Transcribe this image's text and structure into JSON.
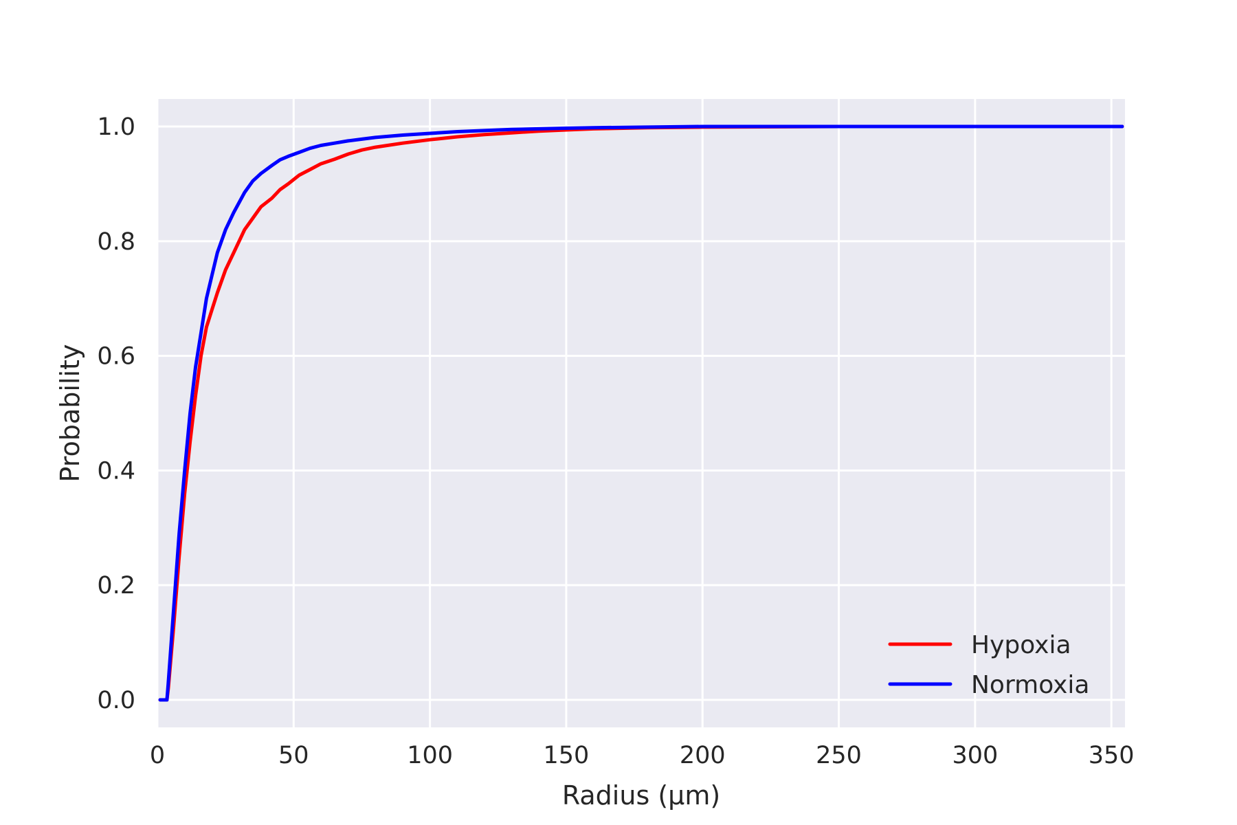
{
  "chart_data": {
    "type": "line",
    "title": "",
    "xlabel": "Radius (µm)",
    "ylabel": "Probability",
    "xlim": [
      0,
      355
    ],
    "ylim": [
      -0.048,
      1.048
    ],
    "xticks": [
      0,
      50,
      100,
      150,
      200,
      250,
      300,
      350
    ],
    "yticks": [
      0.0,
      0.2,
      0.4,
      0.6,
      0.8,
      1.0
    ],
    "xtick_labels": [
      "0",
      "50",
      "100",
      "150",
      "200",
      "250",
      "300",
      "350"
    ],
    "ytick_labels": [
      "0.0",
      "0.2",
      "0.4",
      "0.6",
      "0.8",
      "1.0"
    ],
    "grid": true,
    "legend_position": "lower-right",
    "background_color": "#eaeaf2",
    "series": [
      {
        "name": "Hypoxia",
        "color": "#ff0000",
        "x": [
          1,
          3.5,
          4,
          6,
          8,
          10,
          12,
          14,
          16,
          18,
          20,
          22,
          25,
          28,
          32,
          35,
          38,
          42,
          45,
          48,
          52,
          56,
          60,
          65,
          70,
          75,
          80,
          90,
          100,
          110,
          120,
          130,
          140,
          150,
          160,
          180,
          200,
          250,
          300,
          354
        ],
        "y": [
          0.0,
          0.0,
          0.02,
          0.13,
          0.25,
          0.36,
          0.45,
          0.53,
          0.6,
          0.65,
          0.68,
          0.71,
          0.75,
          0.78,
          0.82,
          0.84,
          0.86,
          0.875,
          0.89,
          0.9,
          0.915,
          0.925,
          0.935,
          0.943,
          0.952,
          0.959,
          0.964,
          0.971,
          0.977,
          0.982,
          0.986,
          0.989,
          0.992,
          0.994,
          0.996,
          0.998,
          0.999,
          1.0,
          1.0,
          1.0
        ]
      },
      {
        "name": "Normoxia",
        "color": "#0000ff",
        "x": [
          1,
          3.5,
          4,
          6,
          8,
          10,
          12,
          14,
          16,
          18,
          20,
          22,
          25,
          28,
          32,
          35,
          38,
          42,
          45,
          48,
          52,
          56,
          60,
          65,
          70,
          75,
          80,
          90,
          100,
          110,
          120,
          130,
          140,
          150,
          160,
          180,
          200,
          250,
          300,
          354
        ],
        "y": [
          0.0,
          0.0,
          0.03,
          0.16,
          0.29,
          0.4,
          0.5,
          0.58,
          0.64,
          0.7,
          0.74,
          0.78,
          0.82,
          0.85,
          0.885,
          0.905,
          0.918,
          0.932,
          0.942,
          0.948,
          0.955,
          0.962,
          0.967,
          0.971,
          0.975,
          0.978,
          0.981,
          0.985,
          0.988,
          0.991,
          0.993,
          0.995,
          0.996,
          0.997,
          0.998,
          0.999,
          1.0,
          1.0,
          1.0,
          1.0
        ]
      }
    ]
  }
}
